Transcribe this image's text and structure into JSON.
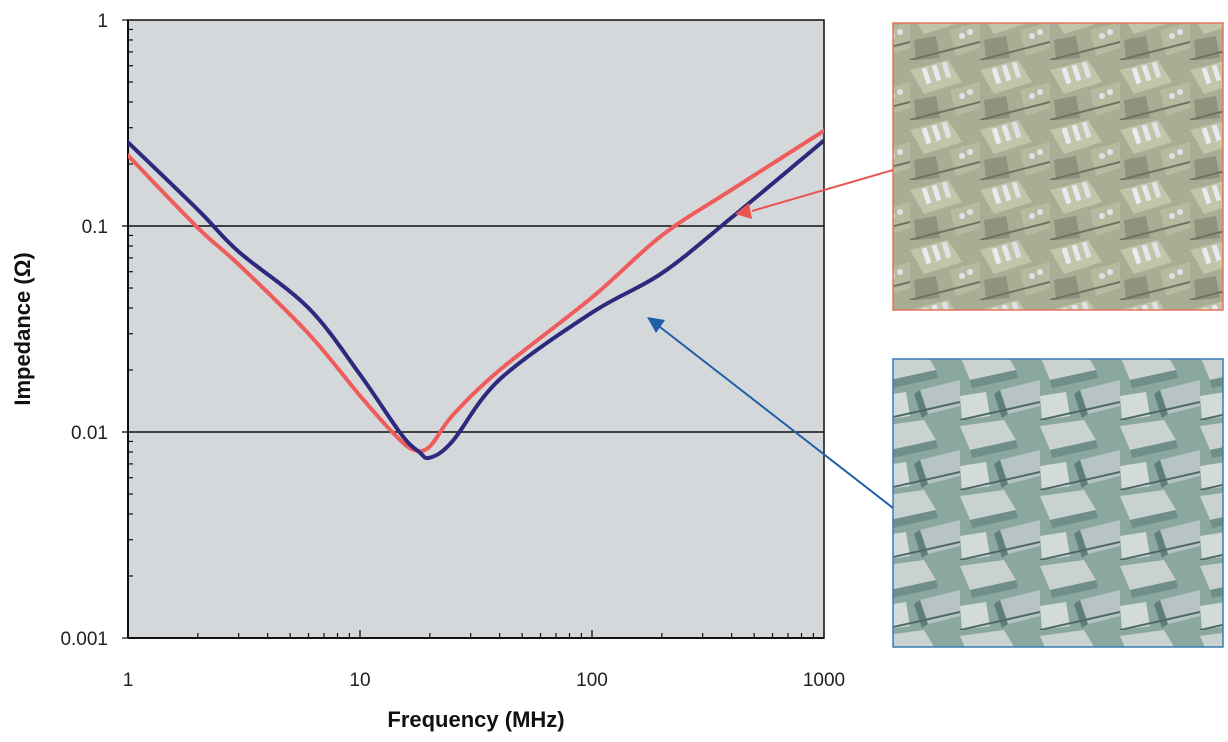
{
  "chart_data": {
    "type": "line",
    "title": "",
    "xlabel": "Frequency (MHz)",
    "ylabel": "Impedance (Ω)",
    "xscale": "log",
    "yscale": "log",
    "xlim": [
      1,
      1000
    ],
    "ylim": [
      0.001,
      1
    ],
    "x_ticks": [
      1,
      10,
      100,
      1000
    ],
    "x_tick_labels": [
      "1",
      "10",
      "100",
      "1000"
    ],
    "y_ticks": [
      0.001,
      0.01,
      0.1,
      1
    ],
    "y_tick_labels": [
      "0.001",
      "0.01",
      "0.1",
      "1"
    ],
    "grid": "horizontal major lines",
    "background": "#d5d8da",
    "series": [
      {
        "color": "#ee5c5c",
        "points": [
          [
            1,
            0.22
          ],
          [
            2,
            0.098
          ],
          [
            3,
            0.065
          ],
          [
            6,
            0.03
          ],
          [
            10,
            0.015
          ],
          [
            14,
            0.0098
          ],
          [
            17,
            0.0082
          ],
          [
            20,
            0.0085
          ],
          [
            25,
            0.012
          ],
          [
            40,
            0.02
          ],
          [
            100,
            0.045
          ],
          [
            200,
            0.09
          ],
          [
            400,
            0.15
          ],
          [
            1000,
            0.29
          ]
        ]
      },
      {
        "color": "#2d2a7e",
        "points": [
          [
            1,
            0.255
          ],
          [
            2,
            0.12
          ],
          [
            3,
            0.075
          ],
          [
            6,
            0.04
          ],
          [
            10,
            0.019
          ],
          [
            15,
            0.0098
          ],
          [
            18,
            0.008
          ],
          [
            20,
            0.0075
          ],
          [
            25,
            0.009
          ],
          [
            40,
            0.018
          ],
          [
            100,
            0.038
          ],
          [
            200,
            0.059
          ],
          [
            400,
            0.11
          ],
          [
            1000,
            0.26
          ]
        ]
      }
    ],
    "insets": [
      {
        "border_color": "#e8705a",
        "points_to_series": 0,
        "arrow_color": "#e8544f"
      },
      {
        "border_color": "#3a7ab8",
        "points_to_series": 1,
        "arrow_color": "#1f5fa8"
      }
    ]
  }
}
